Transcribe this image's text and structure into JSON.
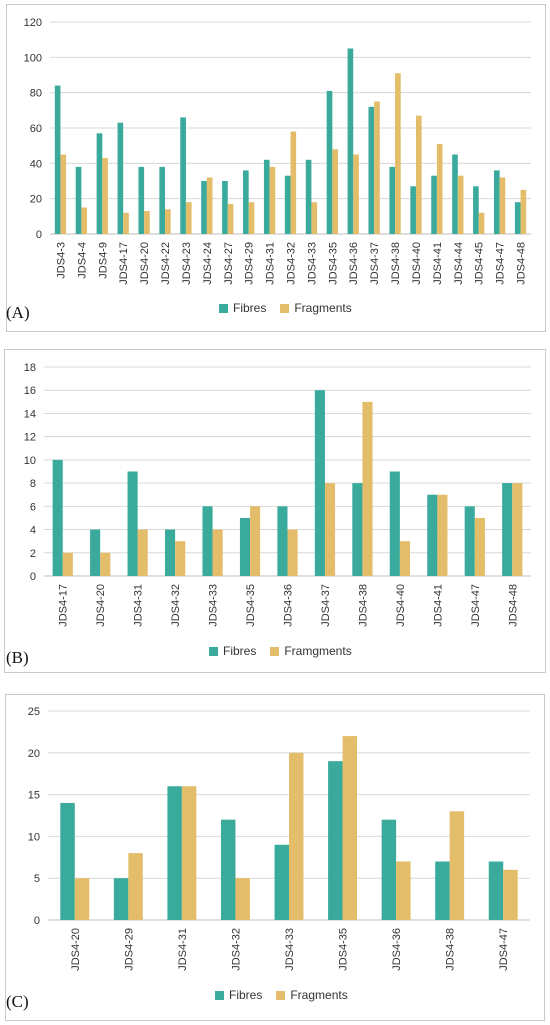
{
  "colors": {
    "fibres": "#3aaa9c",
    "fragments": "#e3bd6a",
    "grid": "#d9d9d9",
    "axis": "#bfbfbf"
  },
  "chart_data": [
    {
      "type": "bar",
      "panel_label": "(A)",
      "categories": [
        "JDS4-3",
        "JDS4-4",
        "JDS4-9",
        "JDS4-17",
        "JDS4-20",
        "JDS4-22",
        "JDS4-23",
        "JDS4-24",
        "JDS4-27",
        "JDS4-29",
        "JDS4-31",
        "JDS4-32",
        "JDS4-33",
        "JDS4-35",
        "JDS4-36",
        "JDS4-37",
        "JDS4-38",
        "JDS4-40",
        "JDS4-41",
        "JDS4-44",
        "JDS4-45",
        "JDS4-47",
        "JDS4-48"
      ],
      "series": [
        {
          "name": "Fibres",
          "values": [
            84,
            38,
            57,
            63,
            38,
            38,
            66,
            30,
            30,
            36,
            42,
            33,
            42,
            81,
            105,
            72,
            38,
            27,
            33,
            45,
            27,
            36,
            18
          ]
        },
        {
          "name": "Fragments",
          "values": [
            45,
            15,
            43,
            12,
            13,
            14,
            18,
            32,
            17,
            18,
            38,
            58,
            18,
            48,
            45,
            75,
            91,
            67,
            51,
            33,
            12,
            32,
            25
          ]
        }
      ],
      "yticks": [
        "0",
        "20",
        "40",
        "60",
        "80",
        "100",
        "120"
      ],
      "ylim": [
        0,
        120
      ],
      "grid": true,
      "legend": "bottom"
    },
    {
      "type": "bar",
      "panel_label": "(B)",
      "categories": [
        "JDS4-17",
        "JDS4-20",
        "JDS4-31",
        "JDS4-32",
        "JDS4-33",
        "JDS4-35",
        "JDS4-36",
        "JDS4-37",
        "JDS4-38",
        "JDS4-40",
        "JDS4-41",
        "JDS4-47",
        "JDS4-48"
      ],
      "series": [
        {
          "name": "Fibres",
          "values": [
            10,
            4,
            9,
            4,
            6,
            5,
            6,
            16,
            8,
            9,
            7,
            6,
            8
          ]
        },
        {
          "name": "Framgments",
          "values": [
            2,
            2,
            4,
            3,
            4,
            6,
            4,
            8,
            15,
            3,
            7,
            5,
            8
          ]
        }
      ],
      "yticks": [
        "0",
        "2",
        "4",
        "6",
        "8",
        "10",
        "12",
        "14",
        "16",
        "18"
      ],
      "ylim": [
        0,
        18
      ],
      "grid": true,
      "legend": "bottom"
    },
    {
      "type": "bar",
      "panel_label": "(C)",
      "categories": [
        "JDS4-20",
        "JDS4-29",
        "JDS4-31",
        "JDS4-32",
        "JDS4-33",
        "JDS4-35",
        "JDS4-36",
        "JDS4-38",
        "JDS4-47"
      ],
      "series": [
        {
          "name": "Fibres",
          "values": [
            14,
            5,
            16,
            12,
            9,
            19,
            12,
            7,
            7
          ]
        },
        {
          "name": "Fragments",
          "values": [
            5,
            8,
            16,
            5,
            20,
            22,
            7,
            13,
            6
          ]
        }
      ],
      "yticks": [
        "0",
        "5",
        "10",
        "15",
        "20",
        "25"
      ],
      "ylim": [
        0,
        25
      ],
      "grid": true,
      "legend": "bottom"
    }
  ]
}
